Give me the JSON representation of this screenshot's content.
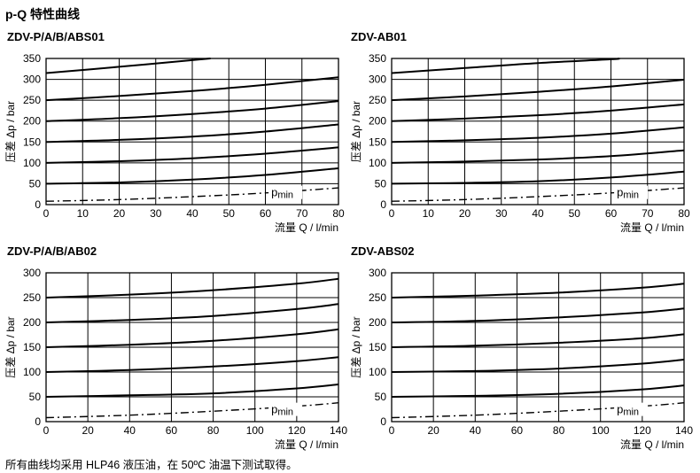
{
  "page": {
    "title": "p-Q 特性曲线",
    "footnote": "所有曲线均采用 HLP46 液压油，在 50ºC 油温下测试取得。"
  },
  "chart_data": [
    {
      "type": "line",
      "title": "ZDV-P/A/B/ABS01",
      "xlabel": "流量 Q / l/min",
      "ylabel": "压差 Δp / bar",
      "xlim": [
        0,
        80
      ],
      "ylim": [
        0,
        350
      ],
      "xticks": [
        "0",
        "10",
        "20",
        "30",
        "40",
        "50",
        "60",
        "70",
        "80"
      ],
      "yticks": [
        "0",
        "50",
        "100",
        "150",
        "200",
        "250",
        "300",
        "350"
      ],
      "grid": true,
      "annotation": {
        "text": "p",
        "sub": "min"
      },
      "series": [
        {
          "style": "solid",
          "x": [
            0,
            20,
            40,
            45
          ],
          "y": [
            315,
            330,
            346,
            350
          ]
        },
        {
          "style": "solid",
          "x": [
            0,
            20,
            40,
            60,
            80
          ],
          "y": [
            250,
            260,
            272,
            287,
            305
          ]
        },
        {
          "style": "solid",
          "x": [
            0,
            20,
            40,
            60,
            80
          ],
          "y": [
            200,
            207,
            217,
            230,
            248
          ]
        },
        {
          "style": "solid",
          "x": [
            0,
            20,
            40,
            60,
            80
          ],
          "y": [
            150,
            155,
            163,
            175,
            192
          ]
        },
        {
          "style": "solid",
          "x": [
            0,
            20,
            40,
            60,
            80
          ],
          "y": [
            100,
            104,
            111,
            122,
            137
          ]
        },
        {
          "style": "solid",
          "x": [
            0,
            20,
            40,
            60,
            80
          ],
          "y": [
            50,
            53,
            60,
            71,
            87
          ]
        },
        {
          "style": "dashdot",
          "x": [
            0,
            20,
            40,
            60,
            80
          ],
          "y": [
            8,
            12,
            19,
            28,
            40
          ]
        }
      ]
    },
    {
      "type": "line",
      "title": "ZDV-AB01",
      "xlabel": "流量 Q / l/min",
      "ylabel": "压差 Δp / bar",
      "xlim": [
        0,
        80
      ],
      "ylim": [
        0,
        350
      ],
      "xticks": [
        "0",
        "10",
        "20",
        "30",
        "40",
        "50",
        "60",
        "70",
        "80"
      ],
      "yticks": [
        "0",
        "50",
        "100",
        "150",
        "200",
        "250",
        "300",
        "350"
      ],
      "grid": true,
      "annotation": {
        "text": "p",
        "sub": "min"
      },
      "series": [
        {
          "style": "solid",
          "x": [
            0,
            20,
            40,
            60,
            62
          ],
          "y": [
            315,
            327,
            339,
            348,
            350
          ]
        },
        {
          "style": "solid",
          "x": [
            0,
            20,
            40,
            60,
            80
          ],
          "y": [
            250,
            259,
            270,
            283,
            299
          ]
        },
        {
          "style": "solid",
          "x": [
            0,
            20,
            40,
            60,
            80
          ],
          "y": [
            200,
            206,
            214,
            225,
            240
          ]
        },
        {
          "style": "solid",
          "x": [
            0,
            20,
            40,
            60,
            80
          ],
          "y": [
            150,
            154,
            160,
            170,
            185
          ]
        },
        {
          "style": "solid",
          "x": [
            0,
            20,
            40,
            60,
            80
          ],
          "y": [
            100,
            103,
            108,
            116,
            130
          ]
        },
        {
          "style": "solid",
          "x": [
            0,
            20,
            40,
            60,
            80
          ],
          "y": [
            50,
            52,
            56,
            65,
            79
          ]
        },
        {
          "style": "dashdot",
          "x": [
            0,
            20,
            40,
            60,
            80
          ],
          "y": [
            8,
            12,
            19,
            28,
            40
          ]
        }
      ]
    },
    {
      "type": "line",
      "title": "ZDV-P/A/B/AB02",
      "xlabel": "流量 Q / l/min",
      "ylabel": "压差 Δp / bar",
      "xlim": [
        0,
        140
      ],
      "ylim": [
        0,
        300
      ],
      "xticks": [
        "0",
        "20",
        "40",
        "60",
        "80",
        "100",
        "120",
        "140"
      ],
      "yticks": [
        "0",
        "50",
        "100",
        "150",
        "200",
        "250",
        "300"
      ],
      "grid": true,
      "annotation": {
        "text": "p",
        "sub": "min"
      },
      "series": [
        {
          "style": "solid",
          "x": [
            0,
            40,
            80,
            120,
            140
          ],
          "y": [
            250,
            256,
            265,
            278,
            288
          ]
        },
        {
          "style": "solid",
          "x": [
            0,
            40,
            80,
            120,
            140
          ],
          "y": [
            200,
            205,
            213,
            227,
            237
          ]
        },
        {
          "style": "solid",
          "x": [
            0,
            40,
            80,
            120,
            140
          ],
          "y": [
            150,
            155,
            163,
            176,
            186
          ]
        },
        {
          "style": "solid",
          "x": [
            0,
            40,
            80,
            120,
            140
          ],
          "y": [
            100,
            104,
            111,
            122,
            130
          ]
        },
        {
          "style": "solid",
          "x": [
            0,
            40,
            80,
            120,
            140
          ],
          "y": [
            50,
            53,
            57,
            67,
            75
          ]
        },
        {
          "style": "dashdot",
          "x": [
            0,
            40,
            80,
            120,
            140
          ],
          "y": [
            8,
            13,
            21,
            31,
            38
          ]
        }
      ]
    },
    {
      "type": "line",
      "title": "ZDV-ABS02",
      "xlabel": "流量 Q / l/min",
      "ylabel": "压差 Δp / bar",
      "xlim": [
        0,
        140
      ],
      "ylim": [
        0,
        300
      ],
      "xticks": [
        "0",
        "20",
        "40",
        "60",
        "80",
        "100",
        "120",
        "140"
      ],
      "yticks": [
        "0",
        "50",
        "100",
        "150",
        "200",
        "250",
        "300"
      ],
      "grid": true,
      "annotation": {
        "text": "p",
        "sub": "min"
      },
      "series": [
        {
          "style": "solid",
          "x": [
            0,
            40,
            80,
            120,
            140
          ],
          "y": [
            250,
            254,
            260,
            270,
            278
          ]
        },
        {
          "style": "solid",
          "x": [
            0,
            40,
            80,
            120,
            140
          ],
          "y": [
            200,
            203,
            210,
            220,
            228
          ]
        },
        {
          "style": "solid",
          "x": [
            0,
            40,
            80,
            120,
            140
          ],
          "y": [
            150,
            153,
            159,
            168,
            176
          ]
        },
        {
          "style": "solid",
          "x": [
            0,
            40,
            80,
            120,
            140
          ],
          "y": [
            100,
            102,
            107,
            117,
            125
          ]
        },
        {
          "style": "solid",
          "x": [
            0,
            40,
            80,
            120,
            140
          ],
          "y": [
            50,
            52,
            56,
            65,
            73
          ]
        },
        {
          "style": "dashdot",
          "x": [
            0,
            40,
            80,
            120,
            140
          ],
          "y": [
            8,
            13,
            21,
            31,
            38
          ]
        }
      ]
    }
  ]
}
